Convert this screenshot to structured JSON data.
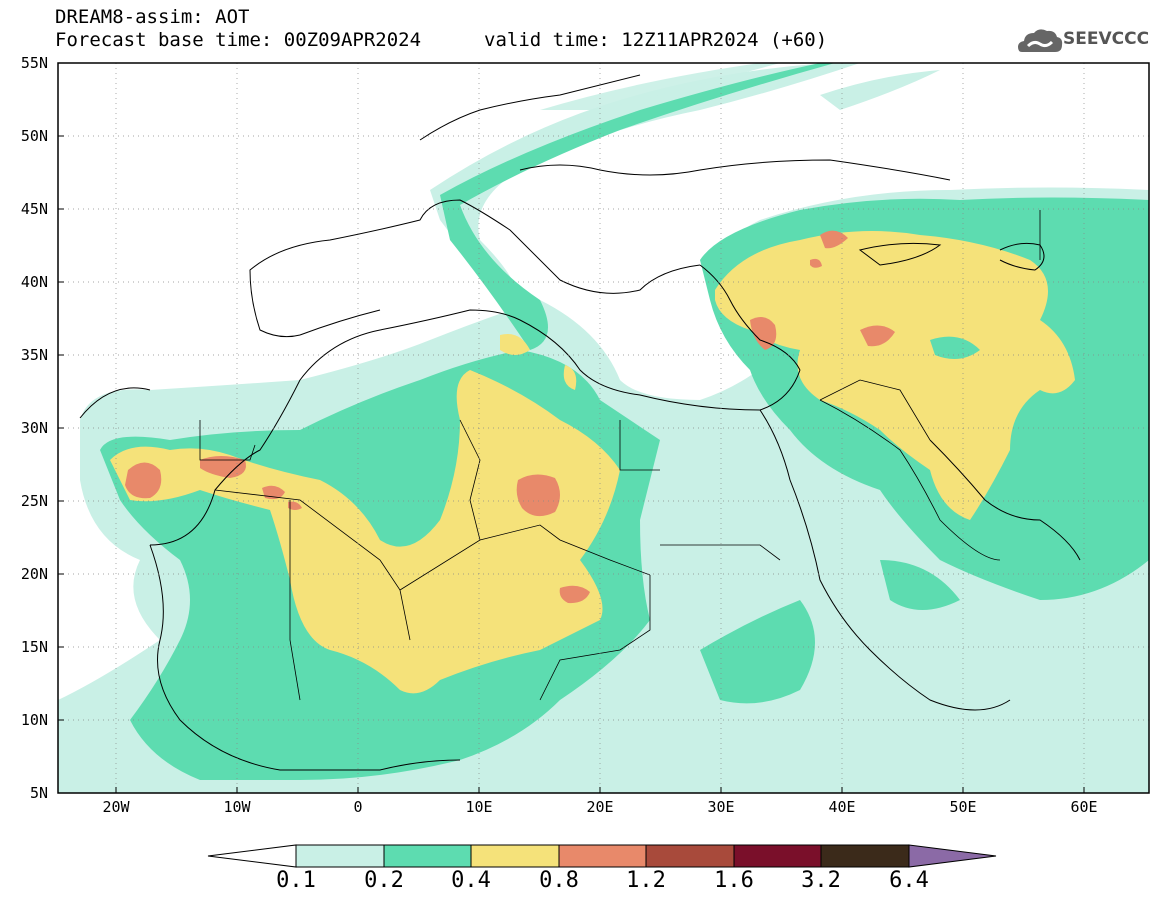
{
  "header": {
    "title": "DREAM8-assim: AOT",
    "base_time": "Forecast base time: 00Z09APR2024",
    "valid_time": "valid time: 12Z11APR2024 (+60)",
    "logo_text": "SEEVCCC"
  },
  "map": {
    "lat_labels": [
      "55N",
      "50N",
      "45N",
      "40N",
      "35N",
      "30N",
      "25N",
      "20N",
      "15N",
      "10N",
      "5N"
    ],
    "lon_labels": [
      "20W",
      "10W",
      "0",
      "10E",
      "20E",
      "30E",
      "40E",
      "50E",
      "60E"
    ],
    "lat_range": [
      5,
      55
    ],
    "lon_range": [
      -25,
      65
    ],
    "grid": "dotted every 5 degrees"
  },
  "colorbar": {
    "labels": [
      "0.1",
      "0.2",
      "0.4",
      "0.8",
      "1.2",
      "1.6",
      "3.2",
      "6.4"
    ],
    "colors": [
      "#c9f0e6",
      "#5ddcb0",
      "#f5e27a",
      "#e8896a",
      "#a84a3b",
      "#7a0f2a",
      "#3b2a1a"
    ],
    "below_color": "#ffffff",
    "above_color": "#8b6aa6"
  },
  "palette": {
    "c1": "#c9f0e6",
    "c2": "#5ddcb0",
    "c3": "#f5e27a",
    "c4": "#e8896a"
  }
}
